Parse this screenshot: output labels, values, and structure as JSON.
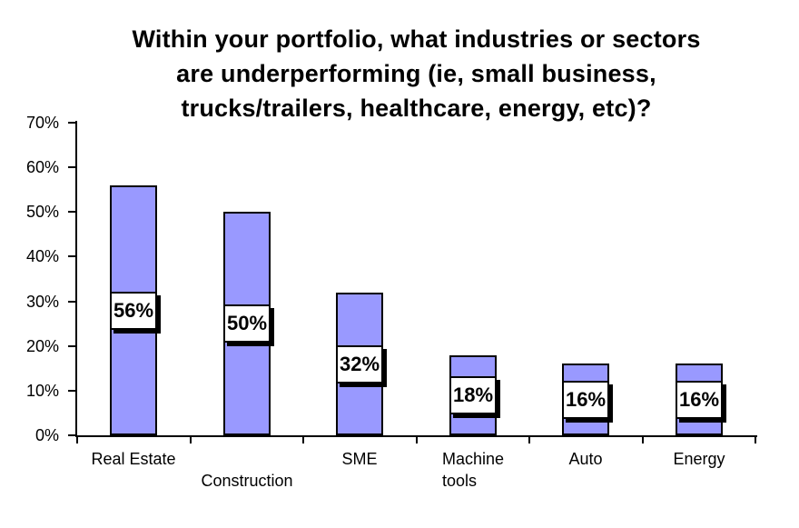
{
  "chart_data": {
    "type": "bar",
    "title": "Within your portfolio, what industries or sectors are underperforming (ie, small business, trucks/trailers, healthcare, energy, etc)?",
    "title_lines": [
      "Within your portfolio, what industries or sectors",
      "are underperforming (ie, small business,",
      "trucks/trailers, healthcare, energy, etc)?"
    ],
    "categories": [
      "Real Estate",
      "Construction",
      "SME",
      "Machine tools",
      "Auto",
      "Energy"
    ],
    "values": [
      56,
      50,
      32,
      18,
      16,
      16
    ],
    "data_labels": [
      "56%",
      "50%",
      "32%",
      "18%",
      "16%",
      "16%"
    ],
    "category_display": [
      {
        "lines": [
          "Real Estate"
        ],
        "row": 1
      },
      {
        "lines": [
          "Construction"
        ],
        "row": 2
      },
      {
        "lines": [
          "SME"
        ],
        "row": 1
      },
      {
        "lines": [
          "Machine",
          "tools"
        ],
        "row": 1
      },
      {
        "lines": [
          "Auto"
        ],
        "row": 1
      },
      {
        "lines": [
          "Energy"
        ],
        "row": 1
      }
    ],
    "xlabel": "",
    "ylabel": "",
    "ylim": [
      0,
      70
    ],
    "ytick_values": [
      0,
      10,
      20,
      30,
      40,
      50,
      60,
      70
    ],
    "ytick_labels": [
      "0%",
      "10%",
      "20%",
      "30%",
      "40%",
      "50%",
      "60%",
      "70%"
    ],
    "grid": false,
    "legend": false,
    "colors": {
      "background": "#FFFFFF",
      "bar_fill": "#9999FF",
      "bar_border": "#000000",
      "axis_line": "#000000",
      "tick": "#000000",
      "value_label_bg": "#FFFFFF",
      "value_label_border": "#000000",
      "value_label_shadow": "#000000",
      "text": "#000000"
    }
  }
}
